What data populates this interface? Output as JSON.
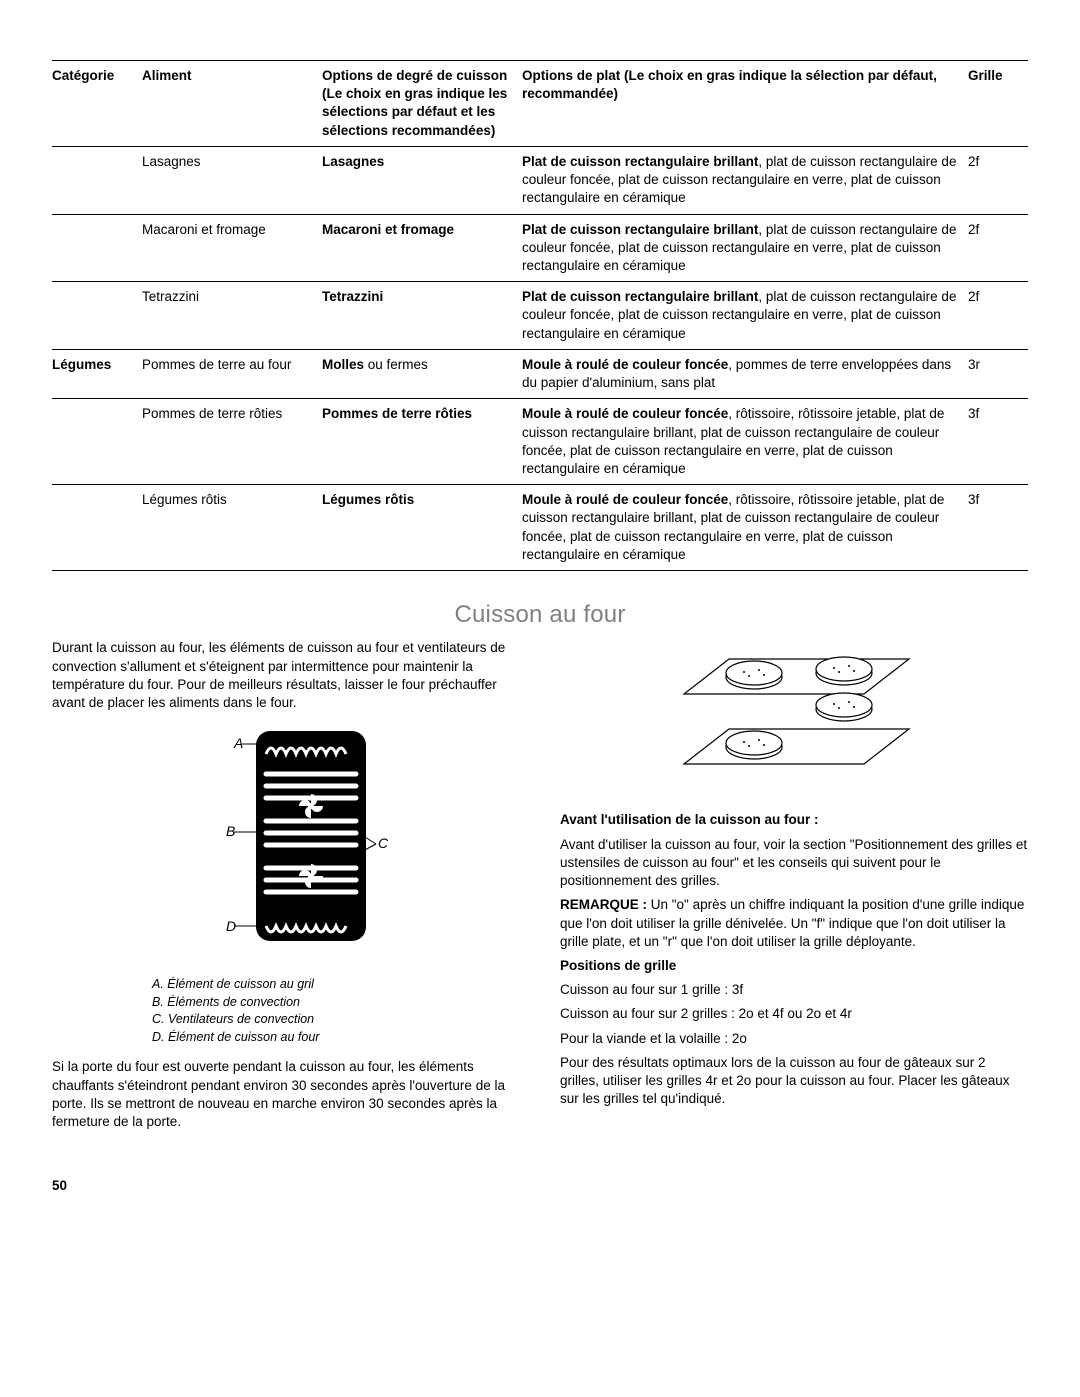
{
  "tableHeaders": {
    "cat": "Catégorie",
    "food": "Aliment",
    "doneness": "Options de degré de cuisson\n(Le choix en gras indique les sélections par défaut et les sélections recommandées)",
    "plate": "Options de plat\n(Le choix en gras indique la sélection par défaut, recommandée)",
    "rack": "Grille"
  },
  "rows": [
    {
      "cat": "",
      "food": "Lasagnes",
      "don_bold": "Lasagnes",
      "don_rest": "",
      "pl_bold": "Plat de cuisson rectangulaire brillant",
      "pl_rest": ", plat de cuisson rectangulaire de couleur foncée, plat de cuisson rectangulaire en verre, plat de cuisson rectangulaire en céramique",
      "rack": "2f"
    },
    {
      "cat": "",
      "food": "Macaroni et fromage",
      "don_bold": "Macaroni et fromage",
      "don_rest": "",
      "pl_bold": "Plat de cuisson rectangulaire brillant",
      "pl_rest": ", plat de cuisson rectangulaire de couleur foncée, plat de cuisson rectangulaire en verre, plat de cuisson rectangulaire en céramique",
      "rack": "2f"
    },
    {
      "cat": "",
      "food": "Tetrazzini",
      "don_bold": "Tetrazzini",
      "don_rest": "",
      "pl_bold": "Plat de cuisson rectangulaire brillant",
      "pl_rest": ", plat de cuisson rectangulaire de couleur foncée, plat de cuisson rectangulaire en verre, plat de cuisson rectangulaire en céramique",
      "rack": "2f"
    },
    {
      "cat": "Légumes",
      "food": "Pommes de terre au four",
      "don_bold": "Molles",
      "don_rest": " ou fermes",
      "pl_bold": "Moule à roulé de couleur foncée",
      "pl_rest": ", pommes de terre enveloppées dans du papier d'aluminium, sans plat",
      "rack": "3r"
    },
    {
      "cat": "",
      "food": "Pommes de terre rôties",
      "don_bold": "Pommes de terre rôties",
      "don_rest": "",
      "pl_bold": "Moule à roulé de couleur foncée",
      "pl_rest": ", rôtissoire, rôtissoire jetable, plat de cuisson rectangulaire brillant, plat de cuisson rectangulaire de couleur foncée, plat de cuisson rectangulaire en verre, plat de cuisson rectangulaire en céramique",
      "rack": "3f"
    },
    {
      "cat": "",
      "food": "Légumes rôtis",
      "don_bold": "Légumes rôtis",
      "don_rest": "",
      "pl_bold": "Moule à roulé de couleur foncée",
      "pl_rest": ", rôtissoire, rôtissoire jetable, plat de cuisson rectangulaire brillant, plat de cuisson rectangulaire de couleur foncée, plat de cuisson rectangulaire en verre, plat de cuisson rectangulaire en céramique",
      "rack": "3f"
    }
  ],
  "sectionTitle": "Cuisson au four",
  "left": {
    "p1": "Durant la cuisson au four, les éléments de cuisson au four et ventilateurs de convection s'allument et s'éteignent par intermittence pour maintenir la température du four. Pour de meilleurs résultats, laisser le four préchauffer avant de placer les aliments dans le four.",
    "p2": "Si la porte du four est ouverte pendant la cuisson au four, les éléments chauffants s'éteindront pendant environ 30 secondes après l'ouverture de la porte. Ils se mettront de nouveau en marche environ 30 secondes après la fermeture de la porte.",
    "legA": "A. Élément de cuisson au gril",
    "legB": "B. Éléments de convection",
    "legC": "C. Ventilateurs de convection",
    "legD": "D. Élément de cuisson au four",
    "labelA": "A",
    "labelB": "B",
    "labelC": "C",
    "labelD": "D"
  },
  "right": {
    "h1": "Avant l'utilisation de la cuisson au four :",
    "p1": "Avant d'utiliser la cuisson au four, voir la section \"Positionnement des grilles et ustensiles de cuisson au four\" et les conseils qui suivent pour le positionnement des grilles.",
    "remarqueLabel": "REMARQUE :",
    "p2": " Un \"o\" après un chiffre indiquant la position d'une grille indique que l'on doit utiliser la grille dénivelée. Un \"f\" indique que l'on doit utiliser la grille plate, et un \"r\" que l'on doit utiliser la grille déployante.",
    "h2": "Positions de grille",
    "p3": "Cuisson au four sur 1 grille : 3f",
    "p4": "Cuisson au four sur 2 grilles : 2o et 4f ou 2o et 4r",
    "p5": "Pour la viande et la volaille : 2o",
    "p6": "Pour des résultats optimaux lors de la cuisson au four de gâteaux sur 2 grilles, utiliser les grilles 4r et 2o pour la cuisson au four. Placer les gâteaux sur les grilles tel qu'indiqué."
  },
  "pageNumber": "50",
  "colors": {
    "titleGray": "#808080",
    "black": "#000000"
  },
  "colWidths": {
    "cat": 90,
    "food": 180,
    "don": 200,
    "plate": 330,
    "rack": 60
  }
}
